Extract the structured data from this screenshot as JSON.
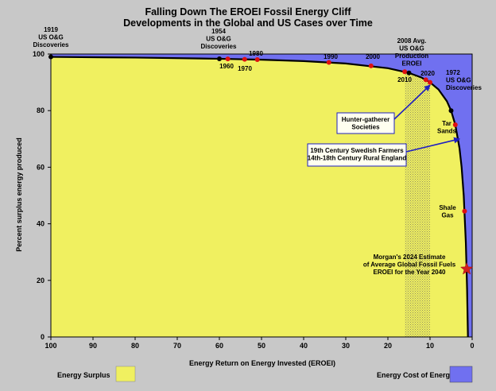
{
  "chart_data": {
    "type": "area",
    "title": "Falling Down The EROEI Fossil Energy Cliff",
    "subtitle": "Developments in the Global and US Cases over Time",
    "xlabel": "Energy Return on Energy Invested (EROEI)",
    "ylabel": "Percent surplus energy produced",
    "xlim": [
      100,
      0
    ],
    "ylim": [
      0,
      100
    ],
    "x_ticks": [
      "100",
      "90",
      "80",
      "70",
      "60",
      "50",
      "40",
      "30",
      "20",
      "10",
      "0"
    ],
    "y_ticks": [
      "0",
      "20",
      "40",
      "60",
      "80",
      "100"
    ],
    "grid": false,
    "colors": {
      "surplus": "#f0f060",
      "cost": "#7070f0",
      "curve": "#000000",
      "point_red": "#e01010",
      "point_black": "#000000",
      "arrow": "#2020c0",
      "background": "#c8c8c8",
      "callout_box": "#fffff0"
    },
    "curve_series": {
      "name": "Percent surplus energy produced",
      "x": [
        100,
        80,
        60,
        50,
        40,
        30,
        20,
        15,
        12,
        10,
        8,
        6,
        5,
        4,
        3,
        2.5,
        2,
        1.5,
        1.2,
        1
      ],
      "y": [
        99,
        98.75,
        98.33,
        98,
        97.5,
        96.67,
        95,
        93.33,
        91.67,
        90,
        87.5,
        83.33,
        80,
        75,
        66.67,
        60,
        50,
        33.33,
        16.67,
        0
      ]
    },
    "shaded_band": {
      "x_range": [
        16,
        10
      ],
      "label": ""
    },
    "points": [
      {
        "x": 100,
        "y": 99,
        "color": "black",
        "label": "1919\nUS O&G\nDiscoveries"
      },
      {
        "x": 60,
        "y": 98.33,
        "color": "black",
        "label": "1954\nUS O&G\nDiscoveries"
      },
      {
        "x": 58,
        "y": 98.28,
        "color": "red",
        "label": "1960"
      },
      {
        "x": 54,
        "y": 98.15,
        "color": "red",
        "label": "1970"
      },
      {
        "x": 51,
        "y": 98.04,
        "color": "red",
        "label": "1980"
      },
      {
        "x": 34,
        "y": 97.06,
        "color": "red",
        "label": "1990"
      },
      {
        "x": 24,
        "y": 95.83,
        "color": "red",
        "label": "2000"
      },
      {
        "x": 16,
        "y": 93.75,
        "color": "red",
        "label": "2010"
      },
      {
        "x": 15,
        "y": 93.33,
        "color": "black",
        "label": "2008 Avg.\nUS O&G\nProduction\nEROEI"
      },
      {
        "x": 11,
        "y": 90.91,
        "color": "red",
        "label": "2020"
      },
      {
        "x": 10,
        "y": 90,
        "color": "red",
        "label": ""
      },
      {
        "x": 5,
        "y": 80,
        "color": "black",
        "label": "1972\nUS O&G\nDiscoveries"
      },
      {
        "x": 4,
        "y": 75,
        "color": "red",
        "label": "Tar\nSands"
      },
      {
        "x": 1.8,
        "y": 44.44,
        "color": "red",
        "label": "Shale\nGas"
      }
    ],
    "star_point": {
      "x": 1.3,
      "y": 24,
      "label": "Morgan's 2024 Estimate\nof Average Global Fossil Fuels\nEROEI for the Year 2040"
    },
    "annotations": [
      {
        "text": "Hunter-gatherer\nSocieties",
        "arrow_to": {
          "x": 10,
          "y": 89
        }
      },
      {
        "text": "19th Century Swedish Farmers\n14th-18th Century Rural England",
        "arrow_to": {
          "x": 3,
          "y": 70
        }
      }
    ],
    "legend": [
      {
        "name": "Energy Surplus",
        "color": "#f0f060"
      },
      {
        "name": "Energy Cost of Energy",
        "color": "#7070f0"
      }
    ],
    "legend_placement": "bottom"
  }
}
